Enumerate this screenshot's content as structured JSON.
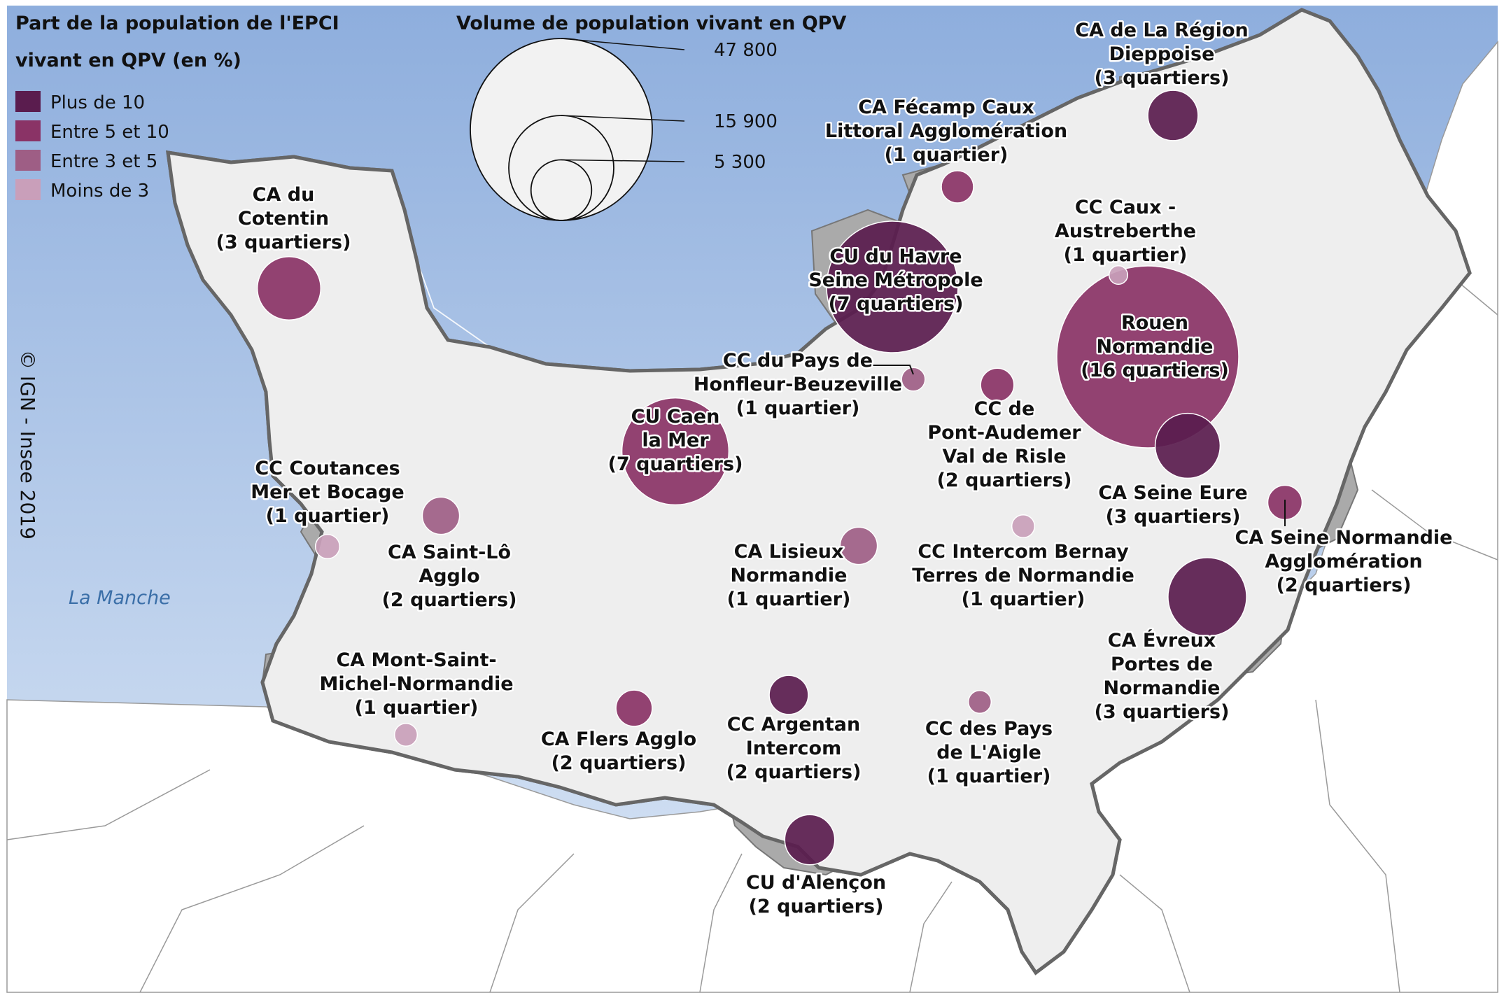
{
  "legend": {
    "color_title_line1": "Part de la population de l'EPCI",
    "color_title_line2": "vivant en QPV (en %)",
    "classes": [
      {
        "label": "Plus de 10",
        "color": "#5a1c4e"
      },
      {
        "label": "Entre 5 et 10",
        "color": "#8a3366"
      },
      {
        "label": "Entre 3 et 5",
        "color": "#9e5e85"
      },
      {
        "label": "Moins de 3",
        "color": "#c99fba"
      }
    ],
    "size_title": "Volume de population vivant en QPV",
    "size_values": [
      "47 800",
      "15 900",
      "5 300"
    ]
  },
  "sea_label": "La Manche",
  "credit": "© IGN - Insee 2019",
  "colors": {
    "sea": "#a7bfe2",
    "land": "#eeeeee",
    "epci_qpv": "#aaaaaa",
    "region_border": "#666666"
  },
  "epci": [
    {
      "id": "dieppe",
      "lines": [
        "CA de La Région",
        "Dieppoise",
        "(3 quartiers)"
      ],
      "class": 0,
      "population": 3650
    },
    {
      "id": "fecamp",
      "lines": [
        "CA Fécamp Caux",
        "Littoral Agglomération",
        "(1 quartier)"
      ],
      "class": 1,
      "population": 1500
    },
    {
      "id": "caux",
      "lines": [
        "CC Caux -",
        "Austreberthe",
        "(1 quartier)"
      ],
      "class": 3,
      "population": 500
    },
    {
      "id": "havre",
      "lines": [
        "CU du Havre",
        "Seine Métropole",
        "(7 quartiers)"
      ],
      "class": 0,
      "population": 25000
    },
    {
      "id": "rouen",
      "lines": [
        "Rouen",
        "Normandie",
        "(16 quartiers)"
      ],
      "class": 1,
      "population": 47800
    },
    {
      "id": "cotentin",
      "lines": [
        "CA du",
        "Cotentin",
        "(3 quartiers)"
      ],
      "class": 1,
      "population": 5800
    },
    {
      "id": "honfleur",
      "lines": [
        "CC du Pays de",
        "Honfleur-Beuzeville",
        "(1 quartier)"
      ],
      "class": 2,
      "population": 800
    },
    {
      "id": "pontaudemer",
      "lines": [
        "CC de",
        "Pont-Audemer",
        "Val de Risle",
        "(2 quartiers)"
      ],
      "class": 1,
      "population": 1600
    },
    {
      "id": "caen",
      "lines": [
        "CU Caen",
        "la Mer",
        "(7 quartiers)"
      ],
      "class": 1,
      "population": 16500
    },
    {
      "id": "seineeure",
      "lines": [
        "CA Seine Eure",
        "(3 quartiers)"
      ],
      "class": 0,
      "population": 6100
    },
    {
      "id": "seinenormandie",
      "lines": [
        "CA Seine Normandie",
        "Agglomération",
        "(2 quartiers)"
      ],
      "class": 1,
      "population": 1700
    },
    {
      "id": "coutances",
      "lines": [
        "CC Coutances",
        "Mer et Bocage",
        "(1 quartier)"
      ],
      "class": 3,
      "population": 850
    },
    {
      "id": "saintlo",
      "lines": [
        "CA Saint-Lô",
        "Agglo",
        "(2 quartiers)"
      ],
      "class": 2,
      "population": 2000
    },
    {
      "id": "lisieux",
      "lines": [
        "CA Lisieux",
        "Normandie",
        "(1 quartier)"
      ],
      "class": 2,
      "population": 2000
    },
    {
      "id": "bernay",
      "lines": [
        "CC Intercom Bernay",
        "Terres de Normandie",
        "(1 quartier)"
      ],
      "class": 3,
      "population": 750
    },
    {
      "id": "evreux",
      "lines": [
        "CA Évreux",
        "Portes de",
        "Normandie",
        "(3 quartiers)"
      ],
      "class": 0,
      "population": 8900
    },
    {
      "id": "montstmichel",
      "lines": [
        "CA Mont-Saint-",
        "Michel-Normandie",
        "(1 quartier)"
      ],
      "class": 3,
      "population": 750
    },
    {
      "id": "flers",
      "lines": [
        "CA Flers Agglo"
      ],
      "extra": "(2 quartiers)",
      "class": 1,
      "population": 1900
    },
    {
      "id": "argentan",
      "lines": [
        "CC Argentan",
        "Intercom",
        "(2 quartiers)"
      ],
      "class": 0,
      "population": 2200
    },
    {
      "id": "laigle",
      "lines": [
        "CC des Pays",
        "de L'Aigle",
        "(1 quartier)"
      ],
      "class": 2,
      "population": 750
    },
    {
      "id": "alencon",
      "lines": [
        "CU d'Alençon",
        "(2 quartiers)"
      ],
      "class": 0,
      "population": 3600
    }
  ]
}
